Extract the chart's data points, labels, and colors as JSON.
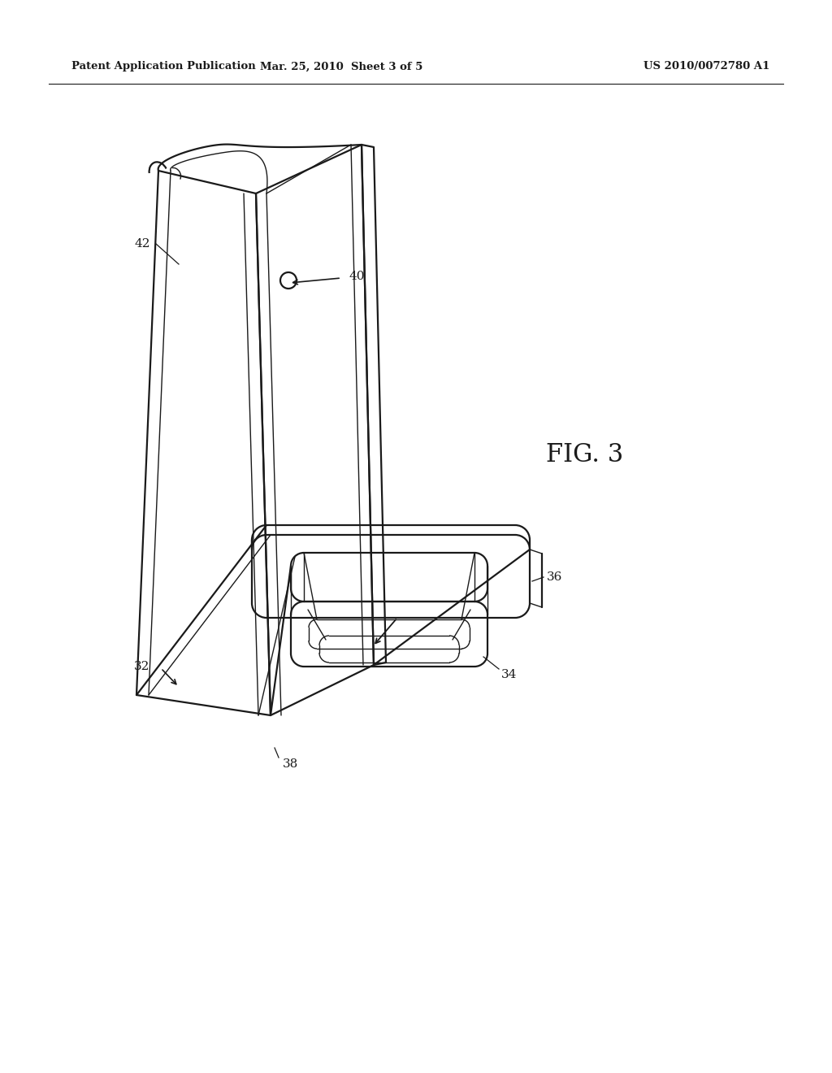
{
  "background_color": "#ffffff",
  "line_color": "#1a1a1a",
  "lw": 1.6,
  "tlw": 1.0,
  "header_left": "Patent Application Publication",
  "header_center": "Mar. 25, 2010  Sheet 3 of 5",
  "header_right": "US 2010/0072780 A1",
  "fig_label": "FIG. 3",
  "label_fontsize": 11,
  "header_fontsize": 9.5
}
